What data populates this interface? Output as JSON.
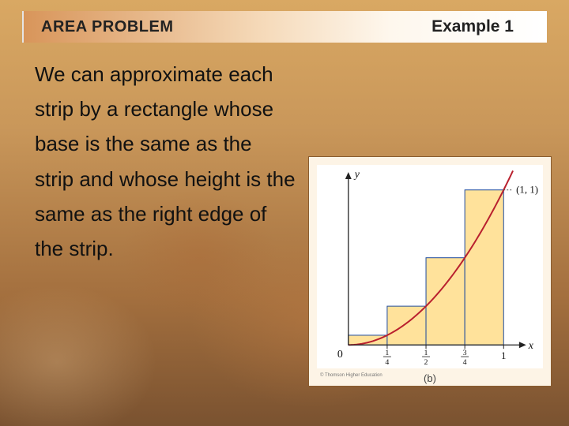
{
  "header": {
    "title": "AREA PROBLEM",
    "example": "Example 1"
  },
  "body": "We can approximate each strip by a rectangle whose base is the same as the strip and whose height is the same as the right edge of the strip.",
  "figure": {
    "type": "riemann-bar-plot",
    "sub_label": "(b)",
    "copyright": "© Thomson Higher Education",
    "xlim": [
      0,
      1.15
    ],
    "ylim": [
      0,
      1.15
    ],
    "bar_fill": "#ffe29b",
    "bar_stroke": "#1d4a9e",
    "curve_color": "#b9202e",
    "curve_width": 2,
    "axis_color": "#222222",
    "axis_width": 1.3,
    "y_axis_label": "y",
    "x_axis_label": "x",
    "origin_label": "0",
    "point_label": "(1, 1)",
    "bars": [
      {
        "x0": 0.0,
        "x1": 0.25,
        "h": 0.0625
      },
      {
        "x0": 0.25,
        "x1": 0.5,
        "h": 0.25
      },
      {
        "x0": 0.5,
        "x1": 0.75,
        "h": 0.5625
      },
      {
        "x0": 0.75,
        "x1": 1.0,
        "h": 1.0
      }
    ],
    "xticks": [
      {
        "v": 0.25,
        "num": "1",
        "den": "4"
      },
      {
        "v": 0.5,
        "num": "1",
        "den": "2"
      },
      {
        "v": 0.75,
        "num": "3",
        "den": "4"
      },
      {
        "v": 1.0,
        "label": "1"
      }
    ]
  }
}
